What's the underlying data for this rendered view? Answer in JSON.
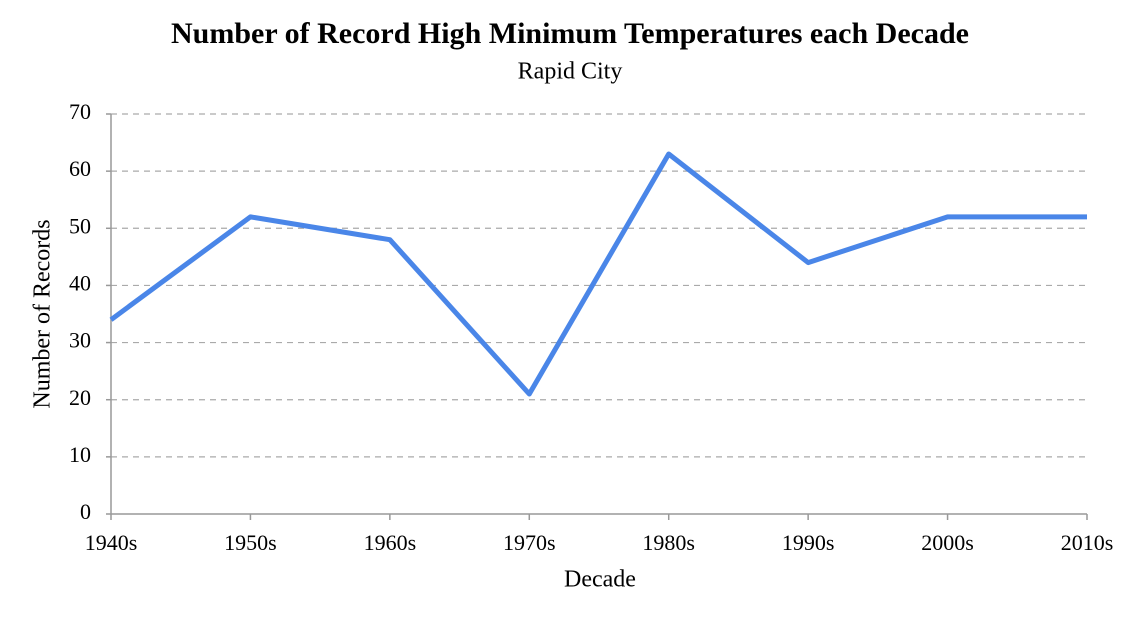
{
  "chart_data": {
    "type": "line",
    "title": "Number of Record High Minimum Temperatures each Decade",
    "subtitle": "Rapid City",
    "x_label": "Decade",
    "y_label": "Number of Records",
    "categories": [
      "1940s",
      "1950s",
      "1960s",
      "1970s",
      "1980s",
      "1990s",
      "2000s",
      "2010s"
    ],
    "values": [
      34,
      52,
      48,
      21,
      63,
      44,
      52,
      52
    ],
    "color": "#4a86e8",
    "ylim": [
      0,
      70
    ],
    "yticks": [
      0,
      10,
      20,
      30,
      40,
      50,
      60,
      70
    ],
    "grid": true
  }
}
